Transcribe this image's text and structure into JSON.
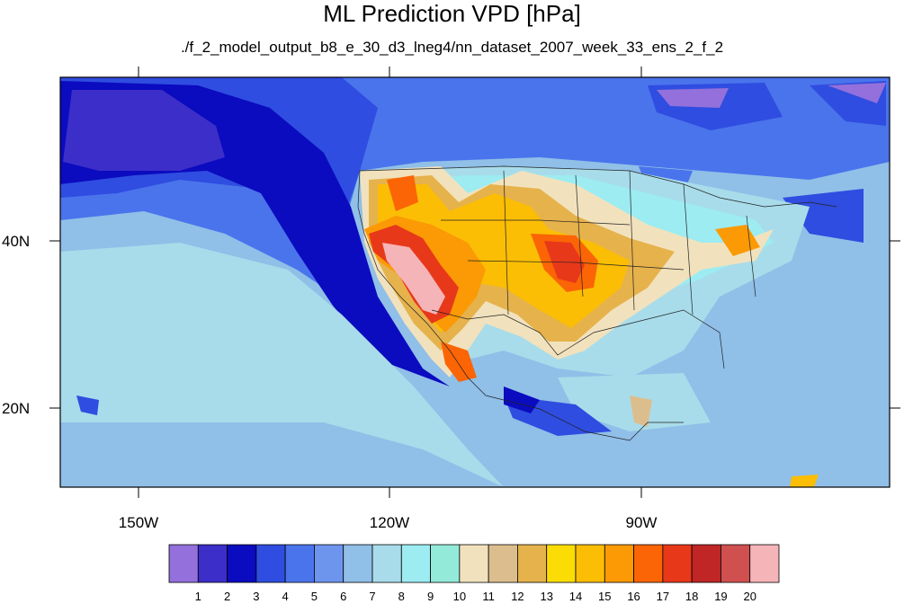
{
  "title": "ML Prediction VPD [hPa]",
  "subtitle": "./f_2_model_output_b8_e_30_d3_lneg4/nn_dataset_2007_week_33_ens_2_f_2",
  "map": {
    "lat_labels": [
      "40N",
      "20N"
    ],
    "lon_labels": [
      "150W",
      "120W",
      "90W"
    ]
  },
  "colorbar": {
    "labels": [
      "1",
      "2",
      "3",
      "4",
      "5",
      "6",
      "7",
      "8",
      "9",
      "10",
      "11",
      "12",
      "13",
      "14",
      "15",
      "16",
      "17",
      "18",
      "19",
      "20"
    ],
    "colors": [
      "#9370db",
      "#3c2ec8",
      "#0b0bbf",
      "#2f4de0",
      "#4a74ec",
      "#6e95ee",
      "#90bfe8",
      "#a8dcea",
      "#9cecf2",
      "#94ead9",
      "#f1e2bd",
      "#dcbe8e",
      "#e6b24c",
      "#fbdc05",
      "#fbbe05",
      "#fb9a05",
      "#fb6505",
      "#e8381a",
      "#c02626",
      "#d05050",
      "#f5b5b8"
    ]
  }
}
